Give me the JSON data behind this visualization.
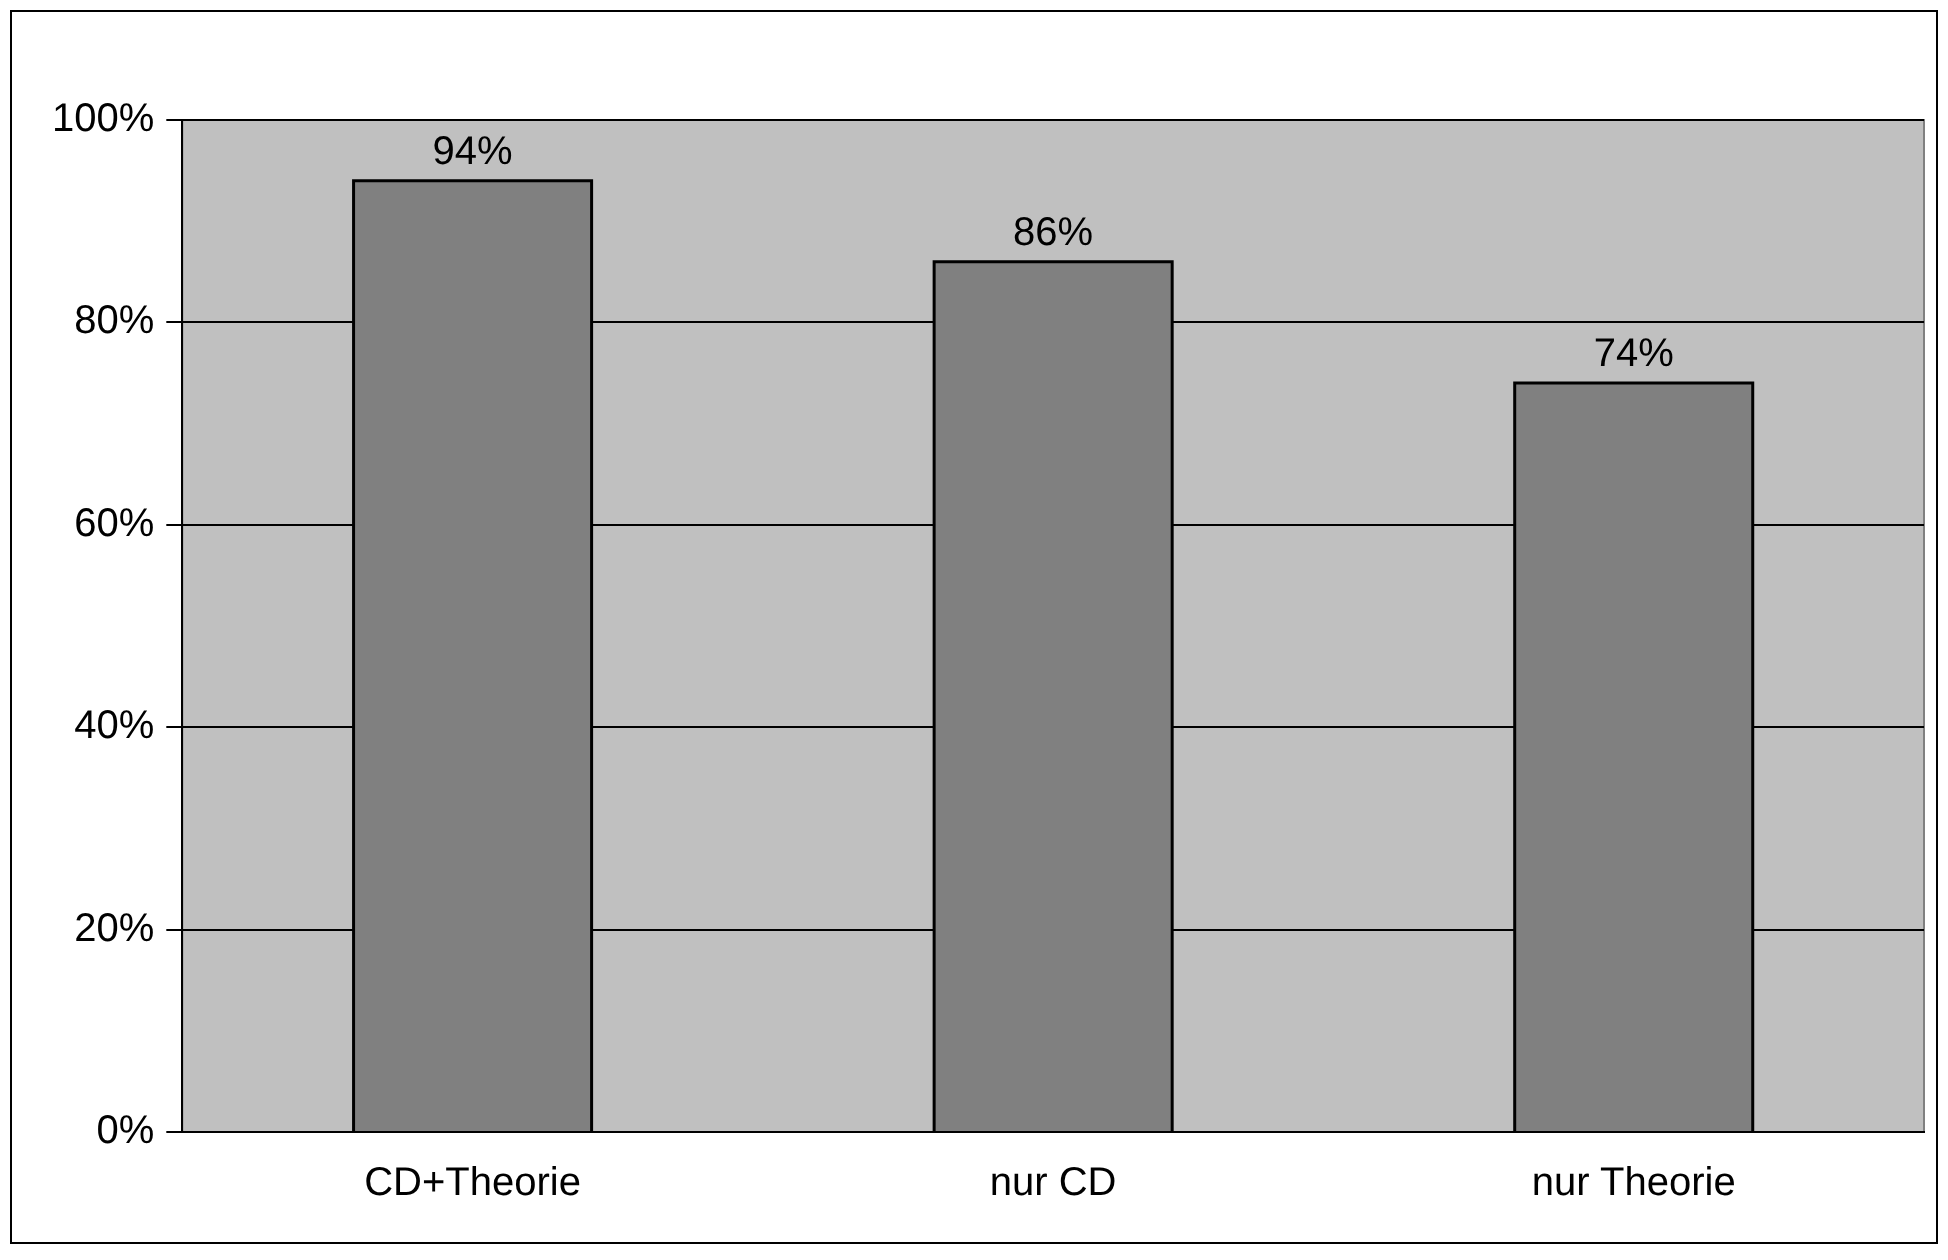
{
  "chart_data": {
    "type": "bar",
    "categories": [
      "CD+Theorie",
      "nur CD",
      "nur Theorie"
    ],
    "values": [
      94,
      86,
      74
    ],
    "color": "#808080",
    "value_labels": [
      "94%",
      "86%",
      "74%"
    ],
    "ylim": [
      0,
      100
    ],
    "yticks": [
      {
        "value": 0,
        "label": "0%"
      },
      {
        "value": 20,
        "label": "20%"
      },
      {
        "value": 40,
        "label": "40%"
      },
      {
        "value": 60,
        "label": "60%"
      },
      {
        "value": 80,
        "label": "80%"
      },
      {
        "value": 100,
        "label": "100%"
      }
    ],
    "grid": "y",
    "legend": false
  }
}
